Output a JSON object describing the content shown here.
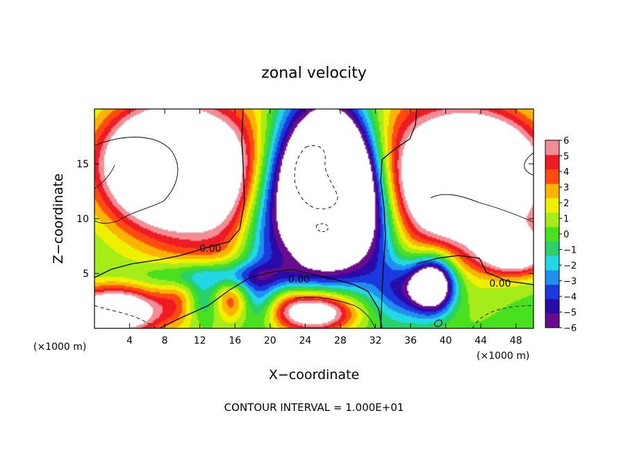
{
  "chart_data": {
    "type": "heatmap",
    "title": "zonal velocity",
    "xlabel": "X−coordinate",
    "ylabel": "Z−coordinate",
    "x_unit_label": "(×1000 m)",
    "y_unit_label": "(×1000 m)",
    "xlim": [
      0,
      50
    ],
    "ylim": [
      0,
      20
    ],
    "x_ticks": [
      4,
      8,
      12,
      16,
      20,
      24,
      28,
      32,
      36,
      40,
      44,
      48
    ],
    "y_ticks": [
      5,
      10,
      15
    ],
    "x_tick_labels": [
      "4",
      "8",
      "12",
      "16",
      "20",
      "24",
      "28",
      "32",
      "36",
      "40",
      "44",
      "48"
    ],
    "y_tick_labels": [
      "5",
      "10",
      "15"
    ],
    "colorbar": {
      "min": -6,
      "max": 6,
      "tick_labels": [
        "6",
        "5",
        "4",
        "3",
        "2",
        "1",
        "0",
        "−1",
        "−2",
        "−3",
        "−4",
        "−5",
        "−6"
      ],
      "colors": [
        "#6a0a8e",
        "#2a0aa8",
        "#1a3ae0",
        "#1f8ff0",
        "#22d8e6",
        "#2ad06a",
        "#49e020",
        "#a6ec18",
        "#eef000",
        "#fcb200",
        "#ff4a10",
        "#f01a24",
        "#f28d95"
      ]
    },
    "contour_labels": [
      {
        "text": "0.00",
        "x": 13.2,
        "y": 7.3
      },
      {
        "text": "0.00",
        "x": 23.3,
        "y": 4.5
      },
      {
        "text": "0.00",
        "x": 46.2,
        "y": 4.1
      }
    ],
    "contour_interval_text": "CONTOUR INTERVAL = 1.000E+01",
    "field_description": "Zonal velocity in the X-Z plane; white areas lie outside the shaded range (above 6 or below -6)."
  }
}
